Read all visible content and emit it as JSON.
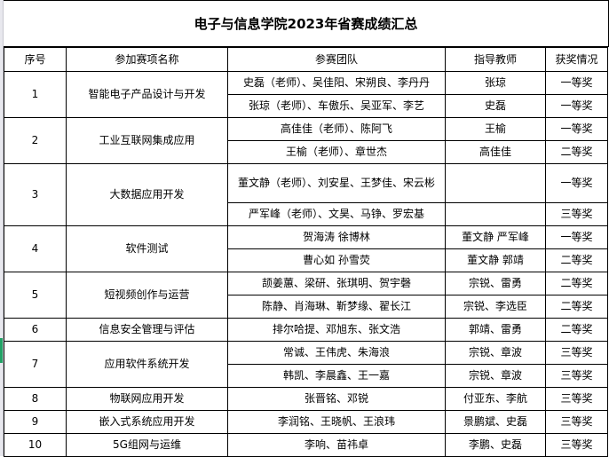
{
  "title": "电子与信息学院2023年省赛成绩汇总",
  "headers": [
    "序号",
    "参加赛项名称",
    "参赛团队",
    "指导教师",
    "获奖情况"
  ],
  "rows": [
    {
      "no": "1",
      "event": "智能电子产品设计与开发",
      "teams": [
        {
          "team": "史磊（老师）、吴佳阳、宋朔良、李丹丹",
          "advisor": "张琼",
          "award": "一等奖"
        },
        {
          "team": "张琼（老师）、车傲乐、吴亚军、李艺",
          "advisor": "史磊",
          "award": "一等奖"
        }
      ]
    },
    {
      "no": "2",
      "event": "工业互联网集成应用",
      "teams": [
        {
          "team": "高佳佳（老师）、陈阿飞",
          "advisor": "王榆",
          "award": "一等奖"
        },
        {
          "team": "王榆（老师）、章世杰",
          "advisor": "高佳佳",
          "award": "二等奖"
        }
      ]
    },
    {
      "no": "3",
      "event": "大数据应用开发",
      "teams": [
        {
          "team": "董文静（老师）、刘安星、王梦佳、宋云彬",
          "advisor": "",
          "award": "一等奖"
        },
        {
          "team": "严军峰（老师）、文昊、马铮、罗宏基",
          "advisor": "",
          "award": "三等奖"
        }
      ]
    },
    {
      "no": "4",
      "event": "软件测试",
      "teams": [
        {
          "team": "贺海涛  徐博林",
          "advisor": "董文静  严军峰",
          "award": "一等奖"
        },
        {
          "team": "曹心如  孙雪荧",
          "advisor": "董文静  郭靖",
          "award": "二等奖"
        }
      ]
    },
    {
      "no": "5",
      "event": "短视频创作与运营",
      "teams": [
        {
          "team": "颉姜蕙、梁研、张琪明、贺宇磬",
          "advisor": "宗锐、雷勇",
          "award": "二等奖"
        },
        {
          "team": "陈静、肖海琳、靳梦缘、翟长江",
          "advisor": "宗锐、李选臣",
          "award": "二等奖"
        }
      ]
    },
    {
      "no": "6",
      "event": "信息安全管理与评估",
      "teams": [
        {
          "team": "排尔哈提、邓旭东、张文浩",
          "advisor": "郭靖、雷勇",
          "award": "二等奖"
        }
      ]
    },
    {
      "no": "7",
      "event": "应用软件系统开发",
      "teams": [
        {
          "team": "常诚、王伟虎、朱海浪",
          "advisor": "宗锐、章波",
          "award": "三等奖"
        },
        {
          "team": "韩凯、李晨鑫、王一嘉",
          "advisor": "宗锐、章波",
          "award": "三等奖"
        }
      ]
    },
    {
      "no": "8",
      "event": "物联网应用开发",
      "teams": [
        {
          "team": "张晋铭、邓锐",
          "advisor": "付亚东、李航",
          "award": "三等奖"
        }
      ]
    },
    {
      "no": "9",
      "event": "嵌入式系统应用开发",
      "teams": [
        {
          "team": "李润铭、王晓帆、王浪玮",
          "advisor": "景鹏斌、史磊",
          "award": "三等奖"
        }
      ]
    },
    {
      "no": "10",
      "event": "5G组网与运维",
      "teams": [
        {
          "team": "李响、苗祎卓",
          "advisor": "李鹏、史磊",
          "award": "三等奖"
        }
      ]
    }
  ]
}
